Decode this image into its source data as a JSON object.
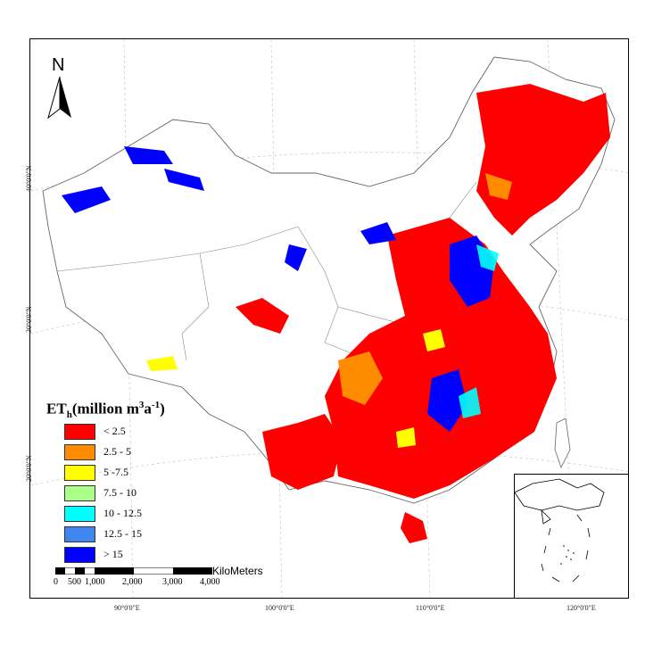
{
  "legend": {
    "title_main": "ET",
    "title_sub": "h",
    "title_rest": "(million m",
    "title_sup": "3",
    "title_mid": "a",
    "title_sup2": "-1",
    "title_end": ")",
    "classes": [
      {
        "label": "< 2.5",
        "color": "#ff0000"
      },
      {
        "label": "2.5 - 5",
        "color": "#ff8c00"
      },
      {
        "label": "5 -7.5",
        "color": "#ffff00"
      },
      {
        "label": "7.5 - 10",
        "color": "#aaff88"
      },
      {
        "label": "10 - 12.5",
        "color": "#00ffff"
      },
      {
        "label": "12.5 - 15",
        "color": "#3f86f0"
      },
      {
        "label": "> 15",
        "color": "#0000ff"
      }
    ]
  },
  "north_arrow": {
    "label": "N",
    "icon": "north-arrow-icon"
  },
  "scale_bar": {
    "unit": "KiloMeters",
    "labels": [
      "0",
      "500",
      "1,000",
      "2,000",
      "3,000",
      "4,000"
    ]
  },
  "graticule": {
    "lon_labels": [
      "90°0'0\"E",
      "100°0'0\"E",
      "110°0'0\"E",
      "120°0'0\"E"
    ],
    "lat_labels": [
      "40°0'0\"N",
      "30°0'0\"N",
      "20°0'0\"N"
    ]
  }
}
